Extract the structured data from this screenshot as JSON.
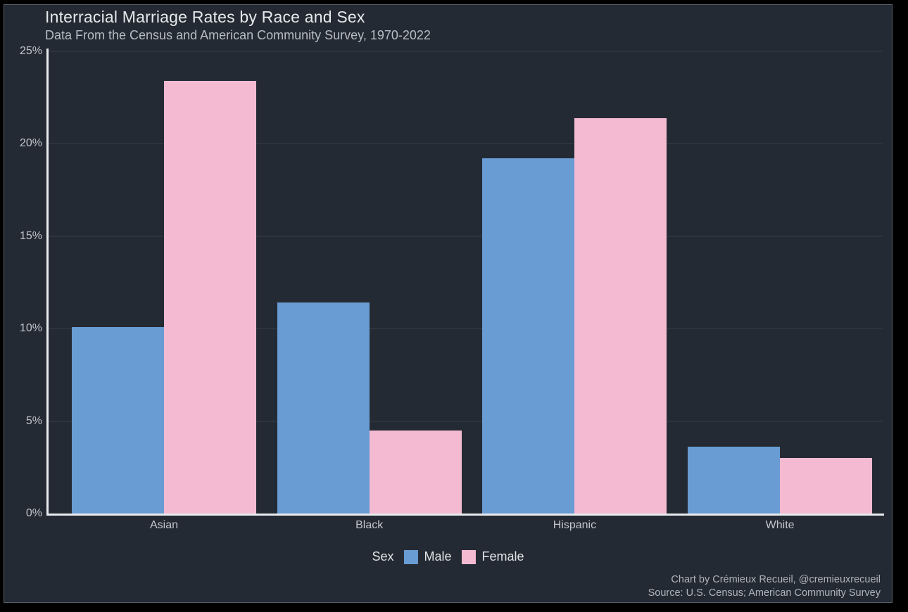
{
  "frame": {
    "background": "#000000",
    "card_background": "#242a33"
  },
  "chart_data": {
    "type": "bar",
    "title": "Interracial Marriage Rates by Race and Sex",
    "subtitle": "Data From the Census and American Community Survey, 1970-2022",
    "categories": [
      "Asian",
      "Black",
      "Hispanic",
      "White"
    ],
    "series": [
      {
        "name": "Male",
        "color": "#689cd3",
        "values": [
          10.1,
          11.4,
          19.2,
          3.6
        ]
      },
      {
        "name": "Female",
        "color": "#f4bad2",
        "values": [
          23.4,
          4.5,
          21.4,
          3.0
        ]
      }
    ],
    "ylim": [
      0,
      25
    ],
    "yticks": [
      0,
      5,
      10,
      15,
      20,
      25
    ],
    "ytick_labels": [
      "0%",
      "5%",
      "10%",
      "15%",
      "20%",
      "25%"
    ],
    "grid": true,
    "legend_title": "Sex",
    "legend_position": "bottom-center",
    "captions": [
      "Chart by Crémieux Recueil, @cremieuxrecueil",
      "Source: U.S. Census; American Community Survey"
    ]
  },
  "colors": {
    "axis_line": "#e8ebee",
    "gridline": "#2d343d",
    "title_text": "#e6e9ec",
    "subtitle_text": "#b7bdc4",
    "tick_text": "#c2c7cd",
    "legend_text": "#dfe2e6",
    "caption_text": "#aeb4ba"
  }
}
